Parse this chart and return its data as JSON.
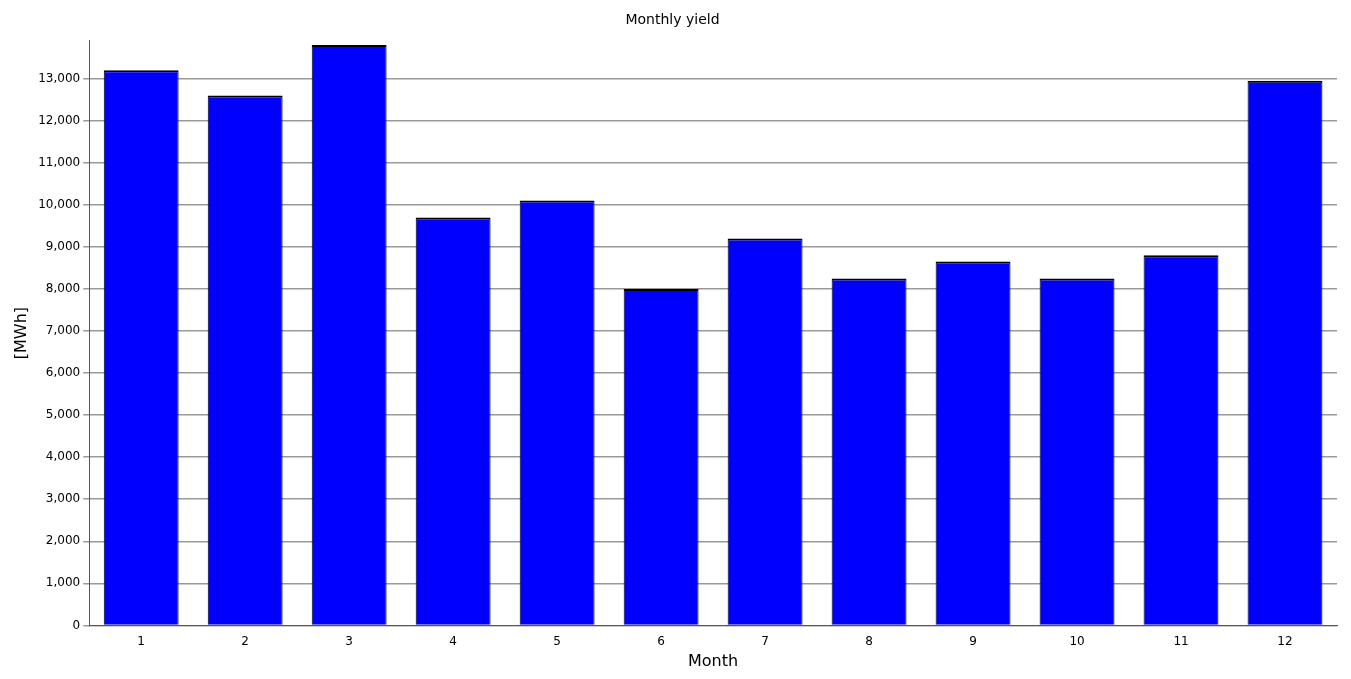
{
  "chart_data": {
    "type": "bar",
    "title": "Monthly yield",
    "xlabel": "Month",
    "ylabel": "[MWh]",
    "categories": [
      "1",
      "2",
      "3",
      "4",
      "5",
      "6",
      "7",
      "8",
      "9",
      "10",
      "11",
      "12"
    ],
    "values": [
      13200,
      12600,
      13800,
      9700,
      10100,
      8000,
      9200,
      8250,
      8650,
      8250,
      8800,
      12950
    ],
    "color": "#0000ff",
    "ylim": [
      0,
      13900
    ],
    "yticks": [
      0,
      {
        "value": 1000,
        "label": "1,000"
      },
      {
        "value": 2000,
        "label": "2,000"
      },
      {
        "value": 3000,
        "label": "3,000"
      },
      {
        "value": 4000,
        "label": "4,000"
      },
      {
        "value": 5000,
        "label": "5,000"
      },
      {
        "value": 6000,
        "label": "6,000"
      },
      {
        "value": 7000,
        "label": "7,000"
      },
      {
        "value": 8000,
        "label": "8,000"
      },
      {
        "value": 9000,
        "label": "9,000"
      },
      {
        "value": 10000,
        "label": "10,000"
      },
      {
        "value": 11000,
        "label": "11,000"
      },
      {
        "value": 12000,
        "label": "12,000"
      },
      {
        "value": 13000,
        "label": "13,000"
      }
    ],
    "grid": "y",
    "legend": false
  }
}
